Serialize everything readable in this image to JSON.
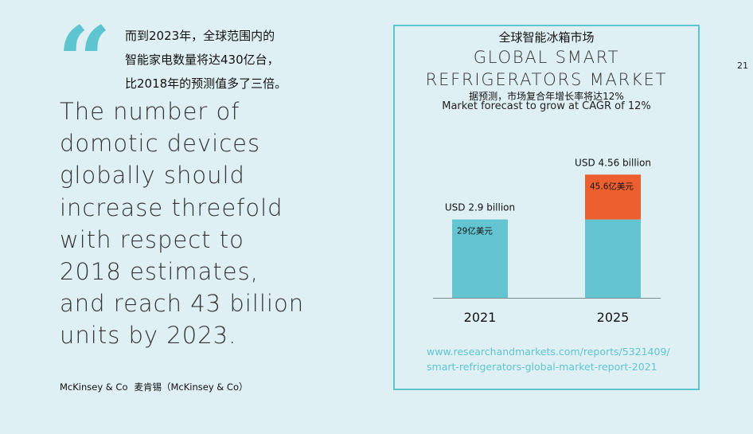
{
  "page_number": "21",
  "quote": {
    "mark": "“",
    "cn_lines": [
      "而到2023年，全球范围内的",
      "智能家电数量将达430亿台，",
      "比2018年的预测值多了三倍。"
    ],
    "en_lines": [
      "The number of",
      "domotic devices",
      "globally should",
      "increase threefold",
      "with respect to",
      "2018 estimates,",
      "and reach 43 billion",
      "units by 2023."
    ]
  },
  "source": {
    "en": "McKinsey & Co",
    "cn": "麦肯锡（McKinsey & Co）"
  },
  "card": {
    "title_cn": "全球智能冰箱市场",
    "title_en_lines": [
      "GLOBAL SMART",
      "REFRIGERATORS MARKET"
    ],
    "subtitle_cn": "据预测，市场复合年增长率将达12%",
    "subtitle_en": "Market forecast to grow at CAGR of 12%",
    "url_lines": [
      "www.researchandmarkets.com/reports/5321409/",
      "smart-refrigerators-global-market-report-2021"
    ]
  },
  "colors": {
    "accent": "#5ec4d0",
    "bar_base": "#63c5d1",
    "bar_growth": "#ee5f2f",
    "background": "#dff0f4"
  },
  "chart_data": {
    "type": "bar",
    "title": "GLOBAL SMART REFRIGERATORS MARKET",
    "categories": [
      "2021",
      "2025"
    ],
    "values": [
      2.9,
      4.56
    ],
    "unit": "USD billion",
    "data_labels": [
      "USD 2.9 billion",
      "USD 4.56 billion"
    ],
    "inner_labels": [
      "29亿美元",
      "45.6亿美元"
    ],
    "stacked_growth": {
      "base_value": 2.9,
      "top_value": 4.56
    },
    "ylim": [
      0,
      5.6
    ],
    "grid": false
  }
}
